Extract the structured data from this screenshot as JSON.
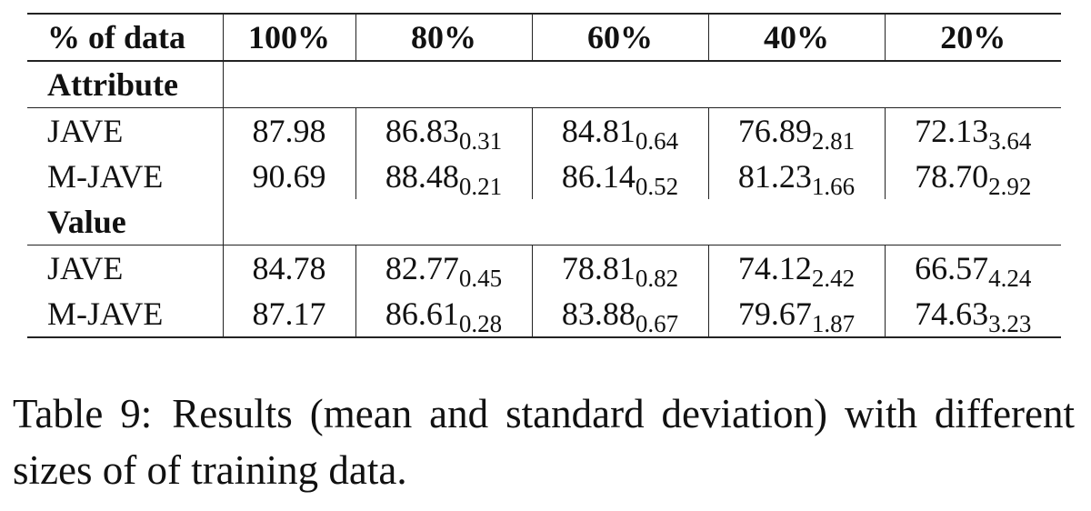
{
  "table": {
    "header": [
      "% of data",
      "100%",
      "80%",
      "60%",
      "40%",
      "20%"
    ],
    "sections": [
      {
        "label": "Attribute",
        "rows": [
          {
            "name": "JAVE",
            "cells": [
              {
                "mean": "87.98"
              },
              {
                "mean": "86.83",
                "std": "0.31"
              },
              {
                "mean": "84.81",
                "std": "0.64"
              },
              {
                "mean": "76.89",
                "std": "2.81"
              },
              {
                "mean": "72.13",
                "std": "3.64"
              }
            ]
          },
          {
            "name": "M-JAVE",
            "cells": [
              {
                "mean": "90.69"
              },
              {
                "mean": "88.48",
                "std": "0.21"
              },
              {
                "mean": "86.14",
                "std": "0.52"
              },
              {
                "mean": "81.23",
                "std": "1.66"
              },
              {
                "mean": "78.70",
                "std": "2.92"
              }
            ]
          }
        ]
      },
      {
        "label": "Value",
        "rows": [
          {
            "name": "JAVE",
            "cells": [
              {
                "mean": "84.78"
              },
              {
                "mean": "82.77",
                "std": "0.45"
              },
              {
                "mean": "78.81",
                "std": "0.82"
              },
              {
                "mean": "74.12",
                "std": "2.42"
              },
              {
                "mean": "66.57",
                "std": "4.24"
              }
            ]
          },
          {
            "name": "M-JAVE",
            "cells": [
              {
                "mean": "87.17"
              },
              {
                "mean": "86.61",
                "std": "0.28"
              },
              {
                "mean": "83.88",
                "std": "0.67"
              },
              {
                "mean": "79.67",
                "std": "1.87"
              },
              {
                "mean": "74.63",
                "std": "3.23"
              }
            ]
          }
        ]
      }
    ]
  },
  "caption": {
    "label": "Table 9:",
    "text": "Results (mean and standard deviation) with different sizes of of training data."
  }
}
